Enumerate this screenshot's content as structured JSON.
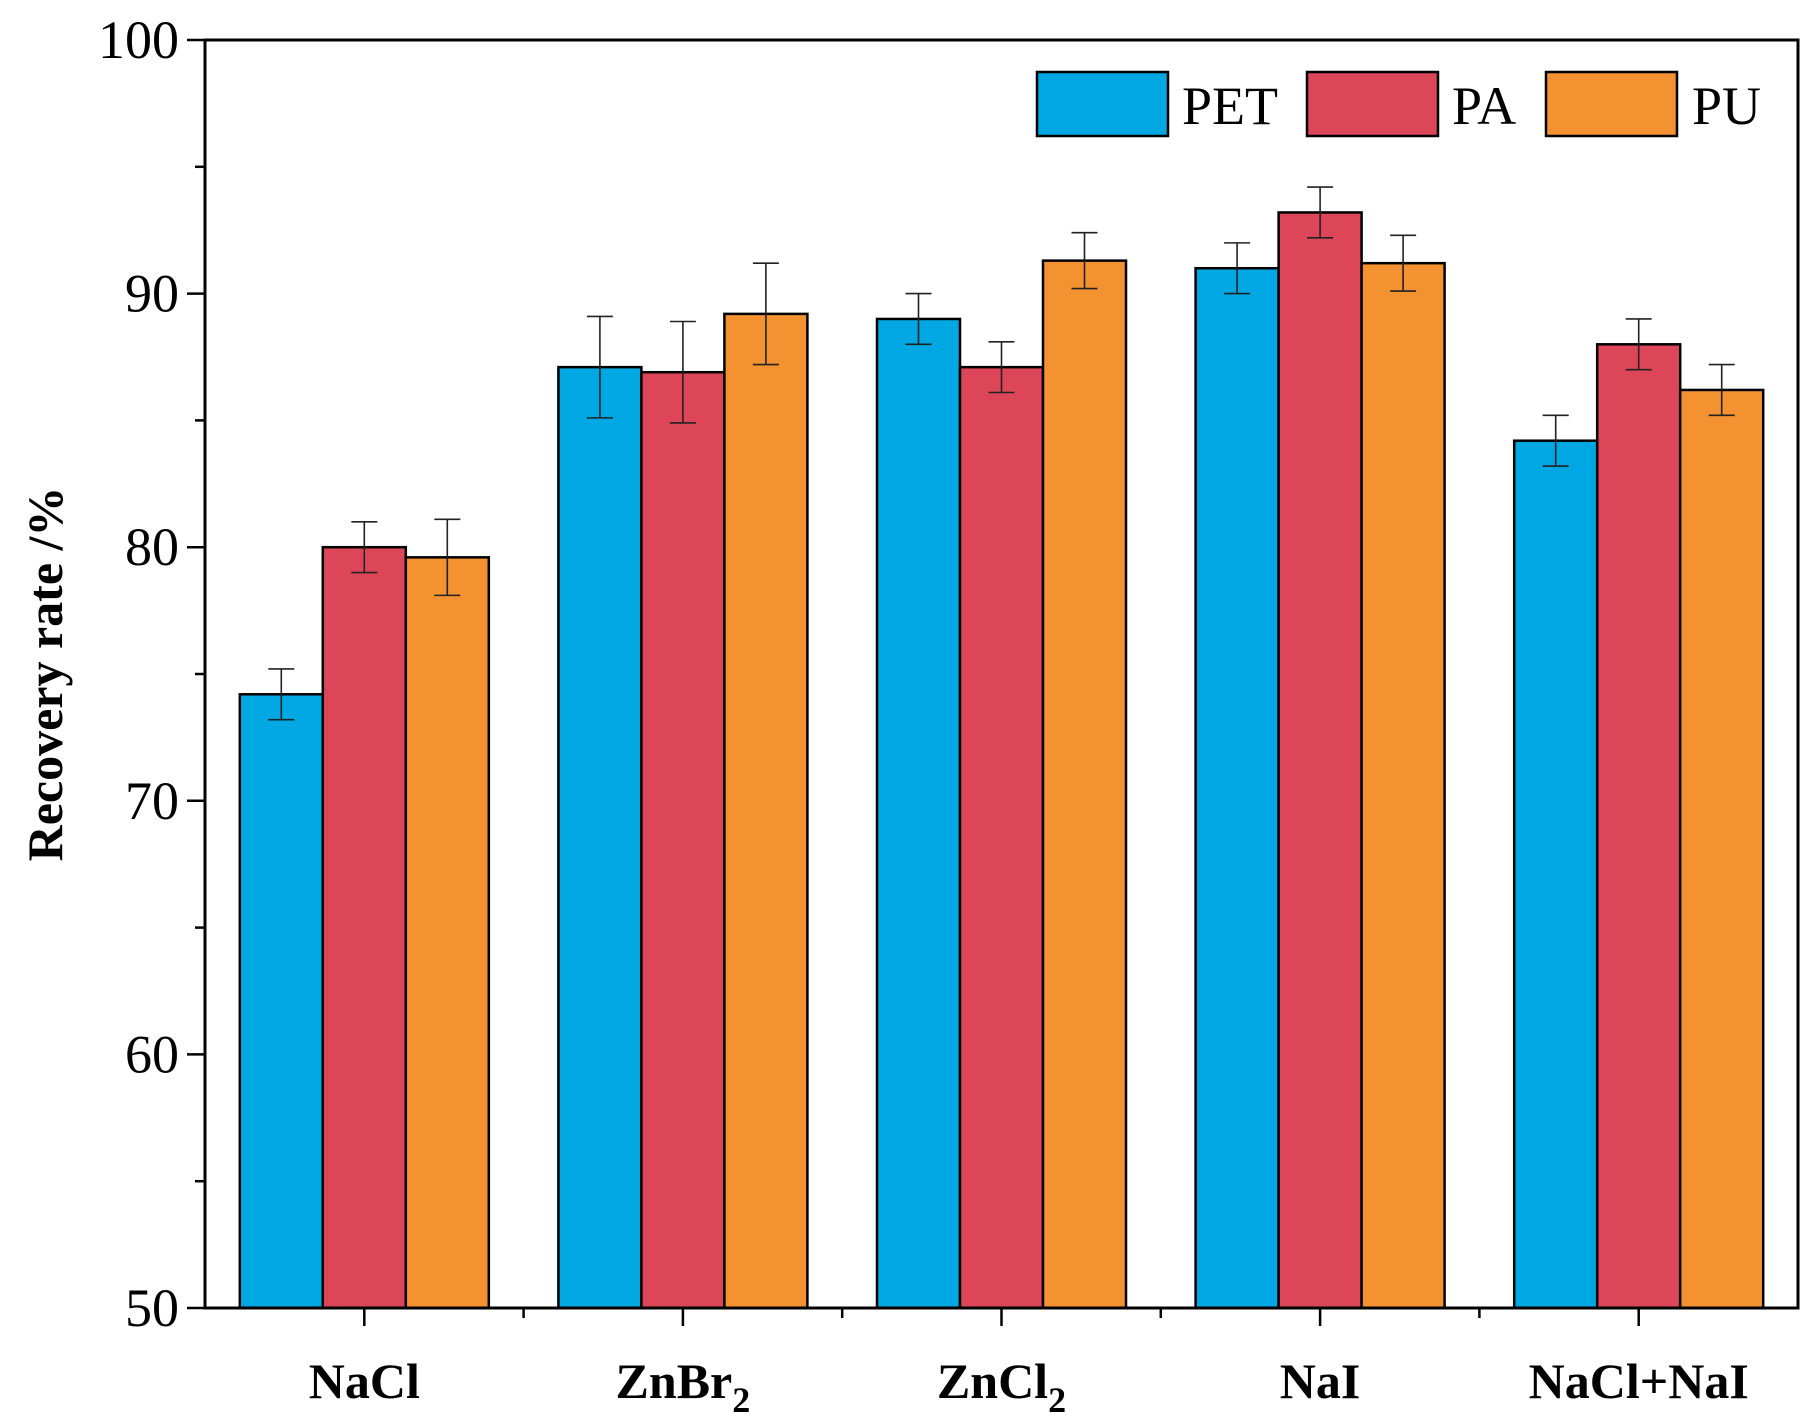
{
  "chart_data": {
    "type": "bar",
    "title": "",
    "xlabel": "",
    "ylabel": "Recovery rate /%",
    "ylim": [
      50,
      100
    ],
    "y_major_ticks": [
      50,
      60,
      70,
      80,
      90,
      100
    ],
    "y_minor_step": 5,
    "categories": [
      {
        "main": "NaCl",
        "sub": ""
      },
      {
        "main": "ZnBr",
        "sub": "2"
      },
      {
        "main": "ZnCl",
        "sub": "2"
      },
      {
        "main": "NaI",
        "sub": ""
      },
      {
        "main": "NaCl+NaI",
        "sub": ""
      }
    ],
    "series": [
      {
        "name": "PET",
        "color": "#00a8e3",
        "values": [
          74.2,
          87.1,
          89.0,
          91.0,
          84.2
        ],
        "errors": [
          1.0,
          2.0,
          1.0,
          1.0,
          1.0
        ]
      },
      {
        "name": "PA",
        "color": "#dd4659",
        "values": [
          80.0,
          86.9,
          87.1,
          93.2,
          88.0
        ],
        "errors": [
          1.0,
          2.0,
          1.0,
          1.0,
          1.0
        ]
      },
      {
        "name": "PU",
        "color": "#f49231",
        "values": [
          79.6,
          89.2,
          91.3,
          91.2,
          86.2
        ],
        "errors": [
          1.5,
          2.0,
          1.1,
          1.1,
          1.0
        ]
      }
    ],
    "legend": {
      "position": "top-right",
      "orientation": "horizontal"
    },
    "grid": false
  }
}
